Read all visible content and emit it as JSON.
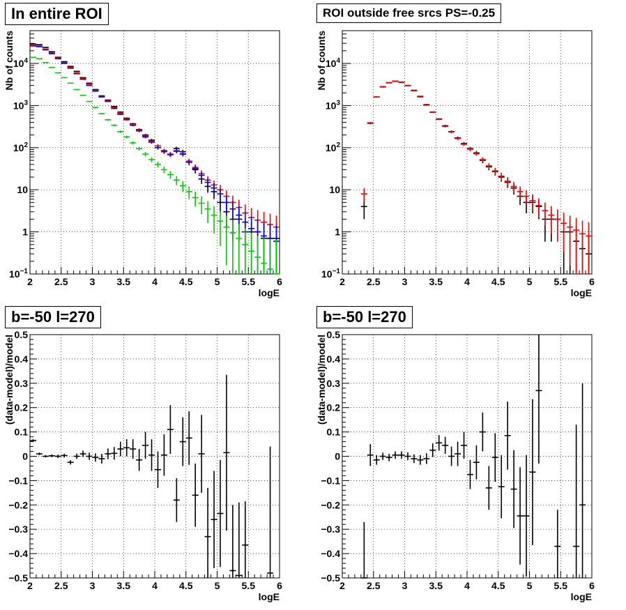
{
  "chart_data": [
    {
      "type": "scatter",
      "title": "In entire ROI",
      "xlabel": "logE",
      "ylabel": "Nb of counts",
      "xlim": [
        2,
        6
      ],
      "ylim": [
        0.1,
        60000
      ],
      "yscale": "log",
      "grid": true,
      "xticks": [
        "2",
        "2.5",
        "3",
        "3.5",
        "4",
        "4.5",
        "5",
        "5.5",
        "6"
      ],
      "yticks": [
        {
          "v": 0.1,
          "base": "10",
          "exp": "−1"
        },
        {
          "v": 1,
          "text": "1"
        },
        {
          "v": 10,
          "text": "10"
        },
        {
          "v": 100,
          "base": "10",
          "exp": "2"
        },
        {
          "v": 1000,
          "base": "10",
          "exp": "3"
        },
        {
          "v": 10000,
          "base": "10",
          "exp": "4"
        }
      ],
      "series": [
        {
          "color": "#000000",
          "x": [
            2.05,
            2.15,
            2.25,
            2.35,
            2.45,
            2.55,
            2.65,
            2.75,
            2.85,
            2.95,
            3.05,
            3.15,
            3.25,
            3.35,
            3.45,
            3.55,
            3.65,
            3.75,
            3.85,
            3.95,
            4.05,
            4.15,
            4.25,
            4.35,
            4.45,
            4.55,
            4.65,
            4.75,
            4.85,
            4.95,
            5.05,
            5.15,
            5.25,
            5.35,
            5.45,
            5.55,
            5.65,
            5.75,
            5.85,
            5.95
          ],
          "y": [
            29000,
            28000,
            24000,
            19000,
            14000,
            11000,
            8500,
            6500,
            4600,
            3400,
            2400,
            1700,
            1350,
            950,
            700,
            500,
            370,
            270,
            200,
            150,
            110,
            85,
            70,
            95,
            80,
            45,
            30,
            18,
            12,
            9,
            5,
            3,
            2,
            2,
            1,
            1,
            1,
            0.7,
            0.7,
            0.7
          ]
        },
        {
          "color": "#ff0000",
          "x": [
            2.05,
            2.15,
            2.25,
            2.35,
            2.45,
            2.55,
            2.65,
            2.75,
            2.85,
            2.95,
            3.05,
            3.15,
            3.25,
            3.35,
            3.45,
            3.55,
            3.65,
            3.75,
            3.85,
            3.95,
            4.05,
            4.15,
            4.25,
            4.35,
            4.45,
            4.55,
            4.65,
            4.75,
            4.85,
            4.95,
            5.05,
            5.15,
            5.25,
            5.35,
            5.45,
            5.55,
            5.65,
            5.75,
            5.85,
            5.95
          ],
          "y": [
            27000,
            26000,
            22000,
            18000,
            13500,
            10500,
            8000,
            6000,
            4400,
            3200,
            2300,
            1650,
            1300,
            900,
            650,
            480,
            360,
            260,
            190,
            140,
            110,
            85,
            70,
            85,
            72,
            48,
            34,
            24,
            17,
            13,
            10,
            7,
            5,
            3.8,
            2.8,
            2.2,
            1.9,
            1.7,
            1.5,
            1.3
          ]
        },
        {
          "color": "#0000ff",
          "x": [
            2.05,
            2.15,
            2.25,
            2.35,
            2.45,
            2.55,
            2.65,
            2.75,
            2.85,
            2.95,
            3.05,
            3.15,
            3.25,
            3.35,
            3.45,
            3.55,
            3.65,
            3.75,
            3.85,
            3.95,
            4.05,
            4.15,
            4.25,
            4.35,
            4.45,
            4.55,
            4.65,
            4.75,
            4.85,
            4.95,
            5.05,
            5.15,
            5.25,
            5.35,
            5.45,
            5.55,
            5.65,
            5.75,
            5.85,
            5.95
          ],
          "y": [
            26000,
            25000,
            21000,
            17000,
            13000,
            10000,
            7700,
            5700,
            4200,
            3000,
            2200,
            1600,
            1250,
            850,
            620,
            460,
            340,
            250,
            180,
            135,
            100,
            80,
            68,
            82,
            70,
            45,
            32,
            22,
            15,
            11,
            8,
            5,
            3.5,
            2.5,
            1.7,
            1.2,
            1,
            0.8,
            0.7,
            0.6
          ]
        },
        {
          "color": "#00cc00",
          "x": [
            2.05,
            2.15,
            2.25,
            2.35,
            2.45,
            2.55,
            2.65,
            2.75,
            2.85,
            2.95,
            3.05,
            3.15,
            3.25,
            3.35,
            3.45,
            3.55,
            3.65,
            3.75,
            3.85,
            3.95,
            4.05,
            4.15,
            4.25,
            4.35,
            4.45,
            4.55,
            4.65,
            4.75,
            4.85,
            4.95,
            5.05,
            5.15,
            5.25,
            5.35,
            5.45,
            5.55,
            5.65,
            5.75,
            5.85,
            5.95
          ],
          "y": [
            14000,
            13000,
            10500,
            8000,
            6000,
            4600,
            3400,
            2400,
            1750,
            1250,
            900,
            640,
            460,
            340,
            240,
            180,
            130,
            95,
            70,
            52,
            40,
            30,
            23,
            17,
            12.5,
            9,
            6.5,
            4.8,
            3.5,
            2.5,
            1.8,
            1.3,
            0.95,
            0.7,
            0.5,
            0.35,
            0.25,
            0.18,
            0.13,
            0.1
          ]
        }
      ]
    },
    {
      "type": "scatter",
      "title": "ROI outside free srcs PS=-0.25",
      "xlabel": "logE",
      "ylabel": "Nb of counts",
      "xlim": [
        2,
        6
      ],
      "ylim": [
        0.1,
        60000
      ],
      "yscale": "log",
      "grid": true,
      "xticks": [
        "2",
        "2.5",
        "3",
        "3.5",
        "4",
        "4.5",
        "5",
        "5.5",
        "6"
      ],
      "yticks": [
        {
          "v": 0.1,
          "base": "10",
          "exp": "−1"
        },
        {
          "v": 1,
          "text": "1"
        },
        {
          "v": 10,
          "text": "10"
        },
        {
          "v": 100,
          "base": "10",
          "exp": "2"
        },
        {
          "v": 1000,
          "base": "10",
          "exp": "3"
        },
        {
          "v": 10000,
          "base": "10",
          "exp": "4"
        }
      ],
      "series": [
        {
          "color": "#000000",
          "x": [
            2.35,
            2.45,
            2.55,
            2.65,
            2.75,
            2.85,
            2.95,
            3.05,
            3.15,
            3.25,
            3.35,
            3.45,
            3.55,
            3.65,
            3.75,
            3.85,
            3.95,
            4.05,
            4.15,
            4.25,
            4.35,
            4.45,
            4.55,
            4.65,
            4.75,
            4.85,
            4.95,
            5.05,
            5.15,
            5.25,
            5.35,
            5.45,
            5.55,
            5.65,
            5.75,
            5.85,
            5.95
          ],
          "y": [
            4,
            380,
            1600,
            2800,
            3500,
            3800,
            3600,
            3000,
            2300,
            1650,
            1050,
            700,
            480,
            330,
            240,
            170,
            125,
            95,
            75,
            50,
            35,
            27,
            20,
            15,
            11,
            7,
            5,
            5,
            4,
            2,
            2,
            2,
            1,
            1,
            0.6,
            0.4,
            0.3
          ]
        },
        {
          "color": "#ff0000",
          "x": [
            2.35,
            2.45,
            2.55,
            2.65,
            2.75,
            2.85,
            2.95,
            3.05,
            3.15,
            3.25,
            3.35,
            3.45,
            3.55,
            3.65,
            3.75,
            3.85,
            3.95,
            4.05,
            4.15,
            4.25,
            4.35,
            4.45,
            4.55,
            4.65,
            4.75,
            4.85,
            4.95,
            5.05,
            5.15,
            5.25,
            5.35,
            5.45,
            5.55,
            5.65,
            5.75,
            5.85,
            5.95
          ],
          "y": [
            8,
            390,
            1600,
            2750,
            3450,
            3750,
            3550,
            2950,
            2250,
            1600,
            1020,
            690,
            470,
            320,
            235,
            165,
            120,
            92,
            72,
            52,
            37,
            28,
            21,
            16,
            12,
            9,
            7,
            5.5,
            4.2,
            3.2,
            2.5,
            2,
            1.6,
            1.3,
            1.1,
            0.9,
            0.8
          ]
        }
      ]
    },
    {
      "type": "scatter",
      "title": "b=-50 l=270",
      "xlabel": "logE",
      "ylabel": "(data-model)/model",
      "xlim": [
        2,
        6
      ],
      "ylim": [
        -0.5,
        0.5
      ],
      "yscale": "linear",
      "grid": true,
      "xticks": [
        "2",
        "2.5",
        "3",
        "3.5",
        "4",
        "4.5",
        "5",
        "5.5",
        "6"
      ],
      "yticks": [
        {
          "v": -0.5,
          "text": "−0.5"
        },
        {
          "v": -0.4,
          "text": "−0.4"
        },
        {
          "v": -0.3,
          "text": "−0.3"
        },
        {
          "v": -0.2,
          "text": "−0.2"
        },
        {
          "v": -0.1,
          "text": "−0.1"
        },
        {
          "v": 0,
          "text": "0"
        },
        {
          "v": 0.1,
          "text": "0.1"
        },
        {
          "v": 0.2,
          "text": "0.2"
        },
        {
          "v": 0.3,
          "text": "0.3"
        },
        {
          "v": 0.4,
          "text": "0.4"
        },
        {
          "v": 0.5,
          "text": "0.5"
        }
      ],
      "series": [
        {
          "color": "#000000",
          "x": [
            2.05,
            2.15,
            2.25,
            2.35,
            2.45,
            2.55,
            2.65,
            2.75,
            2.85,
            2.95,
            3.05,
            3.15,
            3.25,
            3.35,
            3.45,
            3.55,
            3.65,
            3.75,
            3.85,
            3.95,
            4.05,
            4.15,
            4.25,
            4.35,
            4.45,
            4.55,
            4.65,
            4.75,
            4.85,
            4.95,
            5.05,
            5.15,
            5.25,
            5.35,
            5.45,
            5.55,
            5.65,
            5.75,
            5.85,
            5.95
          ],
          "y": [
            0.065,
            0.01,
            0.0,
            0.002,
            0.0,
            0.003,
            -0.025,
            0.0,
            0.01,
            0.0,
            -0.005,
            -0.01,
            0.01,
            0.012,
            0.03,
            0.035,
            0.03,
            -0.015,
            0.045,
            0.005,
            -0.055,
            0.005,
            0.11,
            -0.18,
            0.06,
            0.075,
            -0.16,
            0.01,
            -0.33,
            -0.26,
            -0.235,
            0.015,
            -0.47,
            -0.49,
            -0.365,
            null,
            null,
            null,
            -0.48,
            null
          ],
          "err": [
            0.005,
            0.005,
            0.005,
            0.006,
            0.007,
            0.008,
            0.009,
            0.011,
            0.013,
            0.015,
            0.017,
            0.02,
            0.022,
            0.026,
            0.03,
            0.035,
            0.04,
            0.045,
            0.055,
            0.065,
            0.075,
            0.085,
            0.1,
            0.09,
            0.1,
            0.11,
            0.13,
            0.16,
            0.2,
            0.2,
            0.22,
            0.32,
            0.27,
            0.3,
            0.18,
            null,
            null,
            null,
            0.52,
            null
          ]
        }
      ]
    },
    {
      "type": "scatter",
      "title": "b=-50 l=270",
      "xlabel": "logE",
      "ylabel": "(data-model)/model",
      "xlim": [
        2,
        6
      ],
      "ylim": [
        -0.5,
        0.5
      ],
      "yscale": "linear",
      "grid": true,
      "xticks": [
        "2",
        "2.5",
        "3",
        "3.5",
        "4",
        "4.5",
        "5",
        "5.5",
        "6"
      ],
      "yticks": [
        {
          "v": -0.5,
          "text": "−0.5"
        },
        {
          "v": -0.4,
          "text": "−0.4"
        },
        {
          "v": -0.3,
          "text": "−0.3"
        },
        {
          "v": -0.2,
          "text": "−0.2"
        },
        {
          "v": -0.1,
          "text": "−0.1"
        },
        {
          "v": 0,
          "text": "0"
        },
        {
          "v": 0.1,
          "text": "0.1"
        },
        {
          "v": 0.2,
          "text": "0.2"
        },
        {
          "v": 0.3,
          "text": "0.3"
        },
        {
          "v": 0.4,
          "text": "0.4"
        },
        {
          "v": 0.5,
          "text": "0.5"
        }
      ],
      "series": [
        {
          "color": "#000000",
          "x": [
            2.35,
            2.45,
            2.55,
            2.65,
            2.75,
            2.85,
            2.95,
            3.05,
            3.15,
            3.25,
            3.35,
            3.45,
            3.55,
            3.65,
            3.75,
            3.85,
            3.95,
            4.05,
            4.15,
            4.25,
            4.35,
            4.45,
            4.55,
            4.65,
            4.75,
            4.85,
            4.95,
            5.05,
            5.15,
            5.25,
            5.35,
            5.45,
            5.55,
            5.65,
            5.75,
            5.85,
            5.95
          ],
          "y": [
            -0.5,
            0.005,
            -0.015,
            0.0,
            -0.005,
            0.005,
            0.005,
            0.0,
            -0.01,
            -0.015,
            -0.01,
            0.025,
            0.055,
            0.045,
            0.0,
            0.01,
            0.045,
            -0.075,
            -0.025,
            0.1,
            -0.13,
            -0.005,
            -0.125,
            0.085,
            -0.135,
            -0.245,
            -0.245,
            -0.065,
            0.27,
            null,
            null,
            -0.37,
            null,
            null,
            -0.37,
            -0.2,
            null
          ],
          "err": [
            0.23,
            0.045,
            0.02,
            0.015,
            0.015,
            0.015,
            0.015,
            0.016,
            0.018,
            0.02,
            0.022,
            0.028,
            0.032,
            0.035,
            0.04,
            0.05,
            0.055,
            0.06,
            0.07,
            0.08,
            0.09,
            0.1,
            0.13,
            0.14,
            0.16,
            0.2,
            0.25,
            0.3,
            0.3,
            null,
            null,
            0.15,
            null,
            null,
            0.5,
            0.5,
            null
          ]
        }
      ]
    }
  ]
}
